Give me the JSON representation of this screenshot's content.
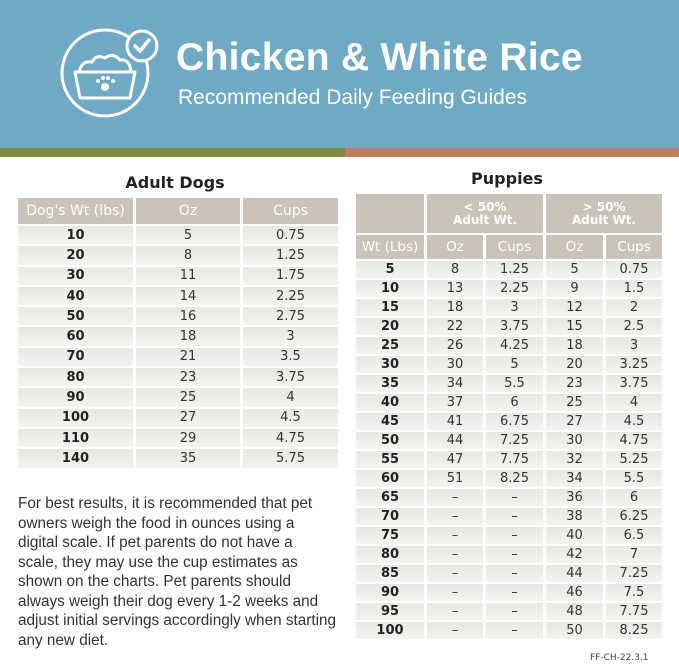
{
  "header": {
    "title": "Chicken & White Rice",
    "subtitle": "Recommended Daily Feeding Guides"
  },
  "adult": {
    "title": "Adult Dogs",
    "columns": [
      "Dog's Wt (lbs)",
      "Oz",
      "Cups"
    ],
    "rows": [
      [
        "10",
        "5",
        "0.75"
      ],
      [
        "20",
        "8",
        "1.25"
      ],
      [
        "30",
        "11",
        "1.75"
      ],
      [
        "40",
        "14",
        "2.25"
      ],
      [
        "50",
        "16",
        "2.75"
      ],
      [
        "60",
        "18",
        "3"
      ],
      [
        "70",
        "21",
        "3.5"
      ],
      [
        "80",
        "23",
        "3.75"
      ],
      [
        "90",
        "25",
        "4"
      ],
      [
        "100",
        "27",
        "4.5"
      ],
      [
        "110",
        "29",
        "4.75"
      ],
      [
        "140",
        "35",
        "5.75"
      ]
    ]
  },
  "puppies": {
    "title": "Puppies",
    "groups": [
      "< 50% Adult Wt.",
      "> 50% Adult Wt."
    ],
    "columns": [
      "Wt (Lbs)",
      "Oz",
      "Cups",
      "Oz",
      "Cups"
    ],
    "rows": [
      [
        "5",
        "8",
        "1.25",
        "5",
        "0.75"
      ],
      [
        "10",
        "13",
        "2.25",
        "9",
        "1.5"
      ],
      [
        "15",
        "18",
        "3",
        "12",
        "2"
      ],
      [
        "20",
        "22",
        "3.75",
        "15",
        "2.5"
      ],
      [
        "25",
        "26",
        "4.25",
        "18",
        "3"
      ],
      [
        "30",
        "30",
        "5",
        "20",
        "3.25"
      ],
      [
        "35",
        "34",
        "5.5",
        "23",
        "3.75"
      ],
      [
        "40",
        "37",
        "6",
        "25",
        "4"
      ],
      [
        "45",
        "41",
        "6.75",
        "27",
        "4.5"
      ],
      [
        "50",
        "44",
        "7.25",
        "30",
        "4.75"
      ],
      [
        "55",
        "47",
        "7.75",
        "32",
        "5.25"
      ],
      [
        "60",
        "51",
        "8.25",
        "34",
        "5.5"
      ],
      [
        "65",
        "–",
        "–",
        "36",
        "6"
      ],
      [
        "70",
        "–",
        "–",
        "38",
        "6.25"
      ],
      [
        "75",
        "–",
        "–",
        "40",
        "6.5"
      ],
      [
        "80",
        "–",
        "–",
        "42",
        "7"
      ],
      [
        "85",
        "–",
        "–",
        "44",
        "7.25"
      ],
      [
        "90",
        "–",
        "–",
        "46",
        "7.5"
      ],
      [
        "95",
        "–",
        "–",
        "48",
        "7.75"
      ],
      [
        "100",
        "–",
        "–",
        "50",
        "8.25"
      ]
    ]
  },
  "note": "For best results, it is recommended that pet owners weigh the food in ounces using a digital scale. If pet parents do not have a scale, they may use the cup estimates as shown on the charts. Pet parents should always weigh their dog every 1-2 weeks and adjust initial servings accordingly when starting any new diet.",
  "code": "FF-CH-22.3.1"
}
